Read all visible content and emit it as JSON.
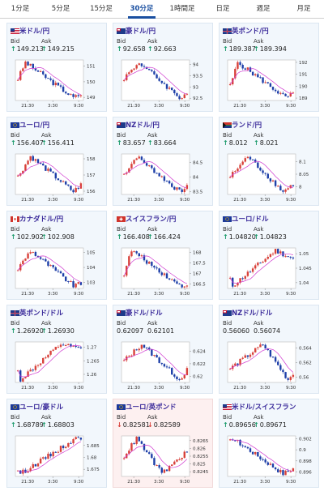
{
  "tabs": [
    {
      "label": "1分足",
      "active": false
    },
    {
      "label": "5分足",
      "active": false
    },
    {
      "label": "15分足",
      "active": false
    },
    {
      "label": "30分足",
      "active": true
    },
    {
      "label": "1時間足",
      "active": false
    },
    {
      "label": "日足",
      "active": false
    },
    {
      "label": "週足",
      "active": false
    },
    {
      "label": "月足",
      "active": false
    }
  ],
  "labels": {
    "bid": "Bid",
    "ask": "Ask"
  },
  "colors": {
    "up": "#d8413a",
    "down": "#1e3fa8",
    "ma": "#d03ad0",
    "arrow_up": "#1a9a6a",
    "arrow_down": "#d8413a"
  },
  "cards": [
    {
      "pair": "米ドル/円",
      "flag": "us",
      "bid": "149.213",
      "ask": "149.215",
      "dir": "up",
      "y_ticks": [
        "151",
        "150",
        "149"
      ],
      "x_ticks": [
        "21:30",
        "3:30",
        "9:30"
      ],
      "ylim": [
        148.8,
        151.4
      ],
      "start": 150.2,
      "end": 149.2,
      "peak": 0.15,
      "valley": 0.9
    },
    {
      "pair": "豪ドル/円",
      "flag": "au",
      "bid": "92.658",
      "ask": "92.663",
      "dir": "up",
      "y_ticks": [
        "94",
        "93.5",
        "93",
        "92.5"
      ],
      "x_ticks": [
        "21:30",
        "3:30",
        "9:30"
      ],
      "ylim": [
        92.4,
        94.2
      ],
      "start": 93.4,
      "end": 92.7,
      "peak": 0.25,
      "valley": 0.9
    },
    {
      "pair": "英ポンド/円",
      "flag": "gb",
      "bid": "189.387",
      "ask": "189.394",
      "dir": "up",
      "y_ticks": [
        "192",
        "191",
        "190",
        "189"
      ],
      "x_ticks": [
        "21:30",
        "3:30",
        "9:30"
      ],
      "ylim": [
        188.8,
        192.2
      ],
      "start": 190.0,
      "end": 189.4,
      "peak": 0.15,
      "valley": 0.9
    },
    {
      "pair": "ユーロ/円",
      "flag": "eu",
      "bid": "156.407",
      "ask": "156.411",
      "dir": "up",
      "y_ticks": [
        "158",
        "157",
        "156"
      ],
      "x_ticks": [
        "21:30",
        "3:30",
        "9:30"
      ],
      "ylim": [
        155.8,
        158.3
      ],
      "start": 156.9,
      "end": 156.4,
      "peak": 0.2,
      "valley": 0.9
    },
    {
      "pair": "NZドル/円",
      "flag": "nz",
      "bid": "83.657",
      "ask": "83.664",
      "dir": "up",
      "y_ticks": [
        "84.5",
        "84",
        "83.5"
      ],
      "x_ticks": [
        "21:30",
        "3:30",
        "9:30"
      ],
      "ylim": [
        83.4,
        84.8
      ],
      "start": 84.1,
      "end": 83.65,
      "peak": 0.2,
      "valley": 0.9
    },
    {
      "pair": "ランド/円",
      "flag": "za",
      "bid": "8.012",
      "ask": "8.021",
      "dir": "up",
      "y_ticks": [
        "8.1",
        "8.05",
        "8"
      ],
      "x_ticks": [
        "21:30",
        "3:30",
        "9:30"
      ],
      "ylim": [
        7.97,
        8.13
      ],
      "start": 8.04,
      "end": 8.01,
      "peak": 0.3,
      "valley": 0.85
    },
    {
      "pair": "カナダドル/円",
      "flag": "ca",
      "bid": "102.902",
      "ask": "102.908",
      "dir": "up",
      "y_ticks": [
        "105",
        "104",
        "103"
      ],
      "x_ticks": [
        "21:30",
        "3:30",
        "9:30"
      ],
      "ylim": [
        102.6,
        105.3
      ],
      "start": 103.9,
      "end": 102.9,
      "peak": 0.2,
      "valley": 0.9
    },
    {
      "pair": "スイスフラン/円",
      "flag": "ch",
      "bid": "166.408",
      "ask": "166.424",
      "dir": "up",
      "y_ticks": [
        "168",
        "167.5",
        "167",
        "166.5"
      ],
      "x_ticks": [
        "21:30",
        "3:30",
        "9:30"
      ],
      "ylim": [
        166.3,
        168.2
      ],
      "start": 167.0,
      "end": 166.45,
      "peak": 0.15,
      "valley": 0.9
    },
    {
      "pair": "ユーロ/ドル",
      "flag": "eu",
      "bid": "1.04820",
      "ask": "1.04823",
      "dir": "up",
      "y_ticks": [
        "1.05",
        "1.045",
        "1.04"
      ],
      "x_ticks": [
        "21:30",
        "3:30",
        "9:30"
      ],
      "ylim": [
        1.038,
        1.052
      ],
      "start": 1.041,
      "end": 1.0482,
      "peak": 0.75,
      "valley": 0.05
    },
    {
      "pair": "英ポンド/ドル",
      "flag": "gb",
      "bid": "1.26920",
      "ask": "1.26930",
      "dir": "up",
      "y_ticks": [
        "1.27",
        "1.265",
        "1.26"
      ],
      "x_ticks": [
        "21:30",
        "3:30",
        "9:30"
      ],
      "ylim": [
        1.257,
        1.272
      ],
      "start": 1.261,
      "end": 1.2692,
      "peak": 0.7,
      "valley": 0.05
    },
    {
      "pair": "豪ドル/ドル",
      "flag": "au",
      "bid": "0.62097",
      "ask": "0.62101",
      "dir": "none",
      "y_ticks": [
        "0.624",
        "0.622",
        "0.62"
      ],
      "x_ticks": [
        "21:30",
        "3:30",
        "9:30"
      ],
      "ylim": [
        0.619,
        0.6255
      ],
      "start": 0.6225,
      "end": 0.621,
      "peak": 0.3,
      "valley": 0.9
    },
    {
      "pair": "NZドル/ドル",
      "flag": "nz",
      "bid": "0.56060",
      "ask": "0.56074",
      "dir": "none",
      "y_ticks": [
        "0.564",
        "0.562",
        "0.56"
      ],
      "x_ticks": [
        "21:30",
        "3:30",
        "9:30"
      ],
      "ylim": [
        0.5593,
        0.5648
      ],
      "start": 0.5612,
      "end": 0.5606,
      "peak": 0.55,
      "valley": 0.95
    },
    {
      "pair": "ユーロ/豪ドル",
      "flag": "eu",
      "bid": "1.68789",
      "ask": "1.68803",
      "dir": "up",
      "y_ticks": [
        "1.685",
        "1.68",
        "1.675"
      ],
      "x_ticks": [
        "21:30",
        "3:30",
        "9:30"
      ],
      "ylim": [
        1.672,
        1.689
      ],
      "start": 1.675,
      "end": 1.688,
      "peak": 0.95,
      "valley": 0.05
    },
    {
      "pair": "ユーロ/英ポンド",
      "flag": "eu",
      "bid": "0.82581",
      "ask": "0.82589",
      "dir": "down",
      "pink": true,
      "y_ticks": [
        "0.8265",
        "0.826",
        "0.8255",
        "0.825",
        "0.8245"
      ],
      "x_ticks": [
        "21:30",
        "3:30",
        "9:30"
      ],
      "ylim": [
        0.8242,
        0.8268
      ],
      "start": 0.8255,
      "end": 0.8258,
      "peak": 0.2,
      "valley": 0.6
    },
    {
      "pair": "米ドル/スイスフラン",
      "flag": "us",
      "bid": "0.89656",
      "ask": "0.89671",
      "dir": "up",
      "y_ticks": [
        "0.902",
        "0.9",
        "0.898",
        "0.896"
      ],
      "x_ticks": [
        "21:30",
        "3:30",
        "9:30"
      ],
      "ylim": [
        0.8952,
        0.9025
      ],
      "start": 0.9015,
      "end": 0.8966,
      "peak": 0.05,
      "valley": 0.85
    }
  ]
}
